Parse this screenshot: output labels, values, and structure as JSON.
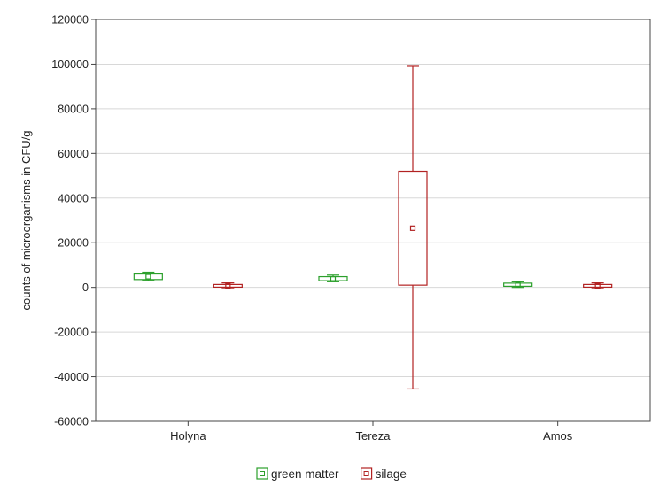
{
  "chart_data": {
    "type": "box",
    "ylabel": "counts of microorganisms in CFU/g",
    "xlabel": "",
    "ylim": [
      -60000,
      120000
    ],
    "yticks": [
      -60000,
      -40000,
      -20000,
      0,
      20000,
      40000,
      60000,
      80000,
      100000,
      120000
    ],
    "ytick_labels": [
      "-60000",
      "-40000",
      "-20000",
      "0",
      "20000",
      "40000",
      "60000",
      "80000",
      "100000",
      "120000"
    ],
    "grid": true,
    "legend_position": "bottom-center",
    "categories": [
      "Holyna",
      "Tereza",
      "Amos"
    ],
    "series": [
      {
        "name": "green matter",
        "color": "#2ca02c",
        "boxes": [
          {
            "mean": 4800,
            "box_low": 3500,
            "box_high": 6000,
            "whisker_low": 3000,
            "whisker_high": 6800
          },
          {
            "mean": 3800,
            "box_low": 3000,
            "box_high": 4800,
            "whisker_low": 2500,
            "whisker_high": 5500
          },
          {
            "mean": 1200,
            "box_low": 500,
            "box_high": 1900,
            "whisker_low": 0,
            "whisker_high": 2500
          }
        ]
      },
      {
        "name": "silage",
        "color": "#b22222",
        "boxes": [
          {
            "mean": 700,
            "box_low": 100,
            "box_high": 1300,
            "whisker_low": -500,
            "whisker_high": 2000
          },
          {
            "mean": 26500,
            "box_low": 1000,
            "box_high": 52000,
            "whisker_low": -45500,
            "whisker_high": 99000
          },
          {
            "mean": 700,
            "box_low": 100,
            "box_high": 1300,
            "whisker_low": -500,
            "whisker_high": 2000
          }
        ]
      }
    ]
  }
}
